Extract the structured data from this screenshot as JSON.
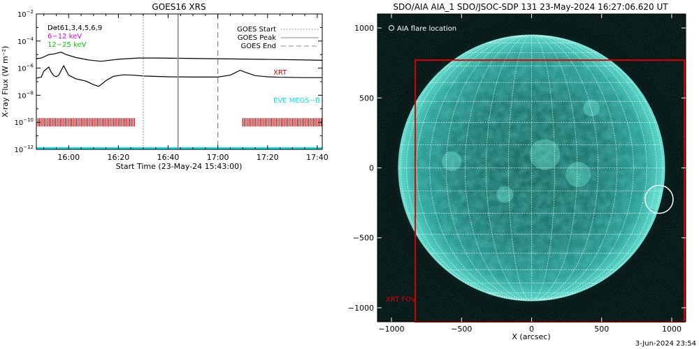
{
  "chart_data": [
    {
      "type": "line",
      "title": "GOES16 XRS",
      "xlabel": "Start Time (23-May-24 15:43:00)",
      "ylabel": "X-ray Flux (W m⁻²)",
      "yscale": "log",
      "ylim": [
        1e-12,
        0.01
      ],
      "xlim_minutes": [
        -13,
        102
      ],
      "x_ticks": [
        {
          "t": 0,
          "label": "16:00"
        },
        {
          "t": 20,
          "label": "16:20"
        },
        {
          "t": 40,
          "label": "16:40"
        },
        {
          "t": 60,
          "label": "17:00"
        },
        {
          "t": 80,
          "label": "17:20"
        },
        {
          "t": 100,
          "label": "17:40"
        }
      ],
      "y_ticks": [
        {
          "v": 1e-12,
          "base": "10",
          "exp": "−12"
        },
        {
          "v": 1e-10,
          "base": "10",
          "exp": "−10"
        },
        {
          "v": 1e-08,
          "base": "10",
          "exp": "−8"
        },
        {
          "v": 1e-06,
          "base": "10",
          "exp": "−6"
        },
        {
          "v": 0.0001,
          "base": "10",
          "exp": "−4"
        },
        {
          "v": 0.01,
          "base": "10",
          "exp": "−2"
        }
      ],
      "series": [
        {
          "name": "GOES long",
          "x": [
            -13,
            -11,
            -8,
            -6,
            -4,
            -3,
            -1,
            3,
            8,
            13,
            20,
            28,
            35,
            45,
            55,
            65,
            75,
            85,
            95,
            102
          ],
          "y": [
            5e-06,
            5.5e-06,
            1e-05,
            1.1e-05,
            1.4e-05,
            1.5e-05,
            1e-05,
            6e-06,
            4e-06,
            3.2e-06,
            4.5e-06,
            5.6e-06,
            5.6e-06,
            5.3e-06,
            5e-06,
            4.8e-06,
            4.5e-06,
            4.3e-06,
            4e-06,
            3.8e-06
          ]
        },
        {
          "name": "GOES short",
          "x": [
            -13,
            -11,
            -10,
            -8,
            -7,
            -6,
            -5,
            -4,
            -2,
            0,
            3,
            7,
            10,
            12,
            13,
            15,
            18,
            22,
            26,
            30,
            40,
            50,
            60,
            65,
            69,
            71,
            75,
            80,
            85,
            95,
            102
          ],
          "y": [
            1.8e-07,
            2.2e-07,
            6e-07,
            1.2e-06,
            5e-07,
            2.8e-07,
            2.3e-07,
            3e-07,
            1.5e-06,
            3e-07,
            1.6e-07,
            1.1e-07,
            6e-08,
            4.5e-08,
            6e-08,
            1.2e-07,
            2.5e-07,
            3.2e-07,
            3e-07,
            2.6e-07,
            2.3e-07,
            2.2e-07,
            2.2e-07,
            3e-07,
            7e-07,
            5e-07,
            2.8e-07,
            2.3e-07,
            2.1e-07,
            2e-07,
            2e-07
          ]
        },
        {
          "name": "EVE MEGS-B",
          "x": [
            -13,
            102
          ],
          "y": [
            1e-12,
            1e-12
          ]
        }
      ],
      "goes_markers": [
        {
          "name": "GOES Start",
          "t": 30
        },
        {
          "name": "GOES Peak",
          "t": 44
        },
        {
          "name": "GOES End",
          "t": 60
        }
      ],
      "xrt_obs_ranges": [
        [
          -13,
          27
        ],
        [
          70,
          102
        ]
      ],
      "xrt_level": 1e-10,
      "legend": {
        "placement": "top-right",
        "entries": [
          {
            "label": "GOES Start",
            "style": "dotted"
          },
          {
            "label": "GOES Peak",
            "style": "solid"
          },
          {
            "label": "GOES End",
            "style": "dashed"
          }
        ]
      },
      "left_labels": [
        {
          "text": "D̵̵e̵t61,3,4,5,6,9",
          "color": "#000000"
        },
        {
          "text": "6−12 keV",
          "color": "#dd00dd"
        },
        {
          "text": "12−25 keV",
          "color": "#00cc00"
        }
      ],
      "right_labels": [
        {
          "text": "XRT",
          "color": "#dd0000"
        },
        {
          "text": "EVE MEGS−B",
          "color": "#00e5ee"
        }
      ]
    },
    {
      "type": "image",
      "title": "SDO/AIA AIA_1 SDO/JSOC-SDP 131 23-May-2024 16:27:06.620 UT",
      "xlabel": "X (arcsec)",
      "xlim": [
        -1100,
        1100
      ],
      "ylim": [
        -1100,
        1100
      ],
      "x_ticks": [
        -1000,
        -500,
        0,
        500,
        1000
      ],
      "y_ticks": [
        -1000,
        -500,
        0,
        500,
        1000
      ],
      "x_tick_labels": [
        "−1000",
        "−500",
        "0",
        "500",
        "1000"
      ],
      "y_tick_labels": [
        "−1000",
        "−500",
        "0",
        "500",
        "1000"
      ],
      "solar_radius_arcsec": 950,
      "flare_location": {
        "label": "AIA flare location",
        "x": 910,
        "y": -225,
        "r": 100
      },
      "xrt_fov": {
        "label": "XRT FOV",
        "x0": -830,
        "x1": 1090,
        "y0": -1100,
        "y1": 770
      },
      "colors": {
        "disk": "#3fc6b7",
        "frame": "#dd0000",
        "grid": "#ffffff"
      }
    }
  ],
  "footer": {
    "timestamp": "3-Jun-2024 23:54"
  }
}
